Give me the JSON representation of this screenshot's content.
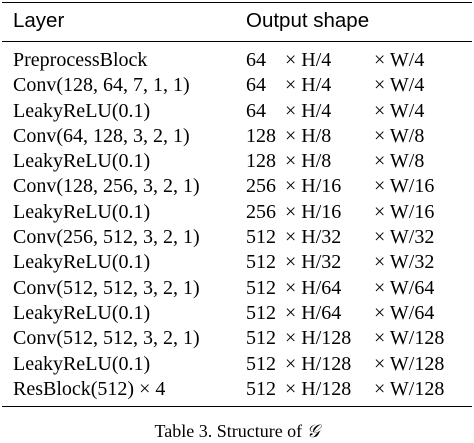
{
  "table": {
    "header": {
      "layer": "Layer",
      "output_shape": "Output shape"
    },
    "rows": [
      {
        "layer": "PreprocessBlock",
        "channels": "64",
        "h": "× H/4",
        "w": "× W/4"
      },
      {
        "layer": "Conv(128, 64, 7, 1, 1)",
        "channels": "64",
        "h": "× H/4",
        "w": "× W/4"
      },
      {
        "layer": "LeakyReLU(0.1)",
        "channels": "64",
        "h": "× H/4",
        "w": "× W/4"
      },
      {
        "layer": "Conv(64, 128, 3, 2, 1)",
        "channels": "128",
        "h": "× H/8",
        "w": "× W/8"
      },
      {
        "layer": "LeakyReLU(0.1)",
        "channels": "128",
        "h": "× H/8",
        "w": "× W/8"
      },
      {
        "layer": "Conv(128, 256, 3, 2, 1)",
        "channels": "256",
        "h": "× H/16",
        "w": "× W/16"
      },
      {
        "layer": "LeakyReLU(0.1)",
        "channels": "256",
        "h": "× H/16",
        "w": "× W/16"
      },
      {
        "layer": "Conv(256, 512, 3, 2, 1)",
        "channels": "512",
        "h": "× H/32",
        "w": "× W/32"
      },
      {
        "layer": "LeakyReLU(0.1)",
        "channels": "512",
        "h": "× H/32",
        "w": "× W/32"
      },
      {
        "layer": "Conv(512, 512, 3, 2, 1)",
        "channels": "512",
        "h": "× H/64",
        "w": "× W/64"
      },
      {
        "layer": "LeakyReLU(0.1)",
        "channels": "512",
        "h": "× H/64",
        "w": "× W/64"
      },
      {
        "layer": "Conv(512, 512, 3, 2, 1)",
        "channels": "512",
        "h": "× H/128",
        "w": "× W/128"
      },
      {
        "layer": "LeakyReLU(0.1)",
        "channels": "512",
        "h": "× H/128",
        "w": "× W/128"
      },
      {
        "layer": "ResBlock(512) × 4",
        "channels": "512",
        "h": "× H/128",
        "w": "× W/128"
      }
    ]
  },
  "caption": {
    "prefix": "Table 3. Structure of ",
    "symbol": "𝒢"
  }
}
